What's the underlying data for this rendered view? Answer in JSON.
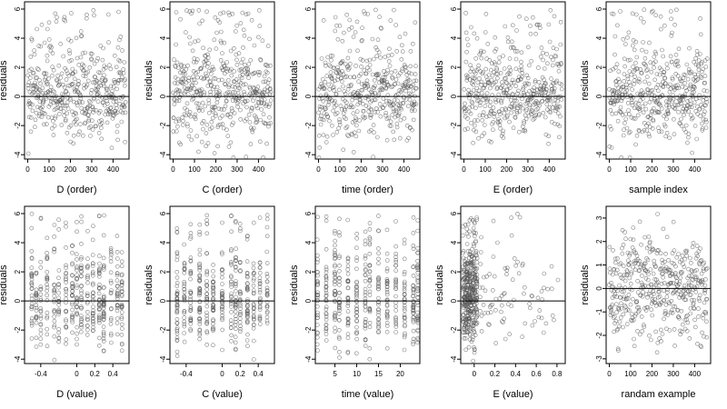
{
  "figure": {
    "panels": [
      {
        "id": "D-order",
        "xlabel": "D (order)",
        "ylabel": "residuals",
        "xticks": [
          0,
          100,
          200,
          300,
          400
        ],
        "yticks": [
          -4,
          -2,
          0,
          2,
          4,
          6
        ]
      },
      {
        "id": "C-order",
        "xlabel": "C (order)",
        "ylabel": "residuals",
        "xticks": [
          0,
          100,
          200,
          300,
          400
        ],
        "yticks": [
          -4,
          -2,
          0,
          2,
          4,
          6
        ]
      },
      {
        "id": "time-order",
        "xlabel": "time (order)",
        "ylabel": "residuals",
        "xticks": [
          0,
          100,
          200,
          300,
          400
        ],
        "yticks": [
          -4,
          -2,
          0,
          2,
          4,
          6
        ]
      },
      {
        "id": "E-order",
        "xlabel": "E (order)",
        "ylabel": "residuals",
        "xticks": [
          0,
          100,
          200,
          300,
          400
        ],
        "yticks": [
          -4,
          -2,
          0,
          2,
          4,
          6
        ]
      },
      {
        "id": "sample-index",
        "xlabel": "sample index",
        "ylabel": "residuals",
        "xticks": [
          0,
          100,
          200,
          300,
          400
        ],
        "yticks": [
          -4,
          -2,
          0,
          2,
          4,
          6
        ]
      },
      {
        "id": "D-value",
        "xlabel": "D (value)",
        "ylabel": "residuals",
        "xticks": [
          -0.4,
          0.0,
          0.2,
          0.4
        ],
        "yticks": [
          -4,
          -2,
          0,
          2,
          4,
          6
        ]
      },
      {
        "id": "C-value",
        "xlabel": "C (value)",
        "ylabel": "residuals",
        "xticks": [
          -0.4,
          0.0,
          0.2,
          0.4
        ],
        "yticks": [
          -4,
          -2,
          0,
          2,
          4,
          6
        ]
      },
      {
        "id": "time-value",
        "xlabel": "time (value)",
        "ylabel": "residuals",
        "xticks": [
          5,
          10,
          15,
          20
        ],
        "yticks": [
          -4,
          -2,
          0,
          2,
          4,
          6
        ]
      },
      {
        "id": "E-value",
        "xlabel": "E (value)",
        "ylabel": "residuals",
        "xticks": [
          0.0,
          0.2,
          0.4,
          0.6,
          0.8
        ],
        "yticks": [
          -4,
          -2,
          0,
          2,
          4,
          6
        ]
      },
      {
        "id": "random-example",
        "xlabel": "randam example",
        "ylabel": "residuals",
        "xticks": [
          0,
          100,
          200,
          300,
          400
        ],
        "yticks": [
          -3,
          -2,
          -1,
          0,
          1,
          2,
          3
        ]
      }
    ]
  },
  "chart_data": [
    {
      "type": "scatter",
      "xlabel": "D (order)",
      "ylabel": "residuals",
      "xlim": [
        -15,
        475
      ],
      "ylim": [
        -4.3,
        6.5
      ],
      "hline": 0,
      "n_points": 460,
      "x_kind": "index",
      "spread": [
        1.6,
        -1.5
      ],
      "grid": false
    },
    {
      "type": "scatter",
      "xlabel": "C (order)",
      "ylabel": "residuals",
      "xlim": [
        -15,
        475
      ],
      "ylim": [
        -4.3,
        6.5
      ],
      "hline": 0,
      "n_points": 460,
      "x_kind": "index",
      "spread": [
        1.6,
        -1.5
      ],
      "grid": false
    },
    {
      "type": "scatter",
      "xlabel": "time (order)",
      "ylabel": "residuals",
      "xlim": [
        -15,
        475
      ],
      "ylim": [
        -4.3,
        6.5
      ],
      "hline": 0,
      "n_points": 460,
      "x_kind": "index",
      "spread": [
        1.6,
        -1.5
      ],
      "grid": false
    },
    {
      "type": "scatter",
      "xlabel": "E (order)",
      "ylabel": "residuals",
      "xlim": [
        -15,
        475
      ],
      "ylim": [
        -4.3,
        6.5
      ],
      "hline": 0,
      "n_points": 460,
      "x_kind": "index",
      "spread": [
        1.6,
        -1.5
      ],
      "grid": false
    },
    {
      "type": "scatter",
      "xlabel": "sample index",
      "ylabel": "residuals",
      "xlim": [
        -15,
        475
      ],
      "ylim": [
        -4.3,
        6.5
      ],
      "hline": 0,
      "n_points": 460,
      "x_kind": "index",
      "spread": [
        1.6,
        -1.5
      ],
      "grid": false
    },
    {
      "type": "scatter",
      "xlabel": "D (value)",
      "ylabel": "residuals",
      "xlim": [
        -0.58,
        0.58
      ],
      "ylim": [
        -4.3,
        6.5
      ],
      "hline": 0,
      "n_points": 460,
      "x_kind": "columns",
      "x_levels": [
        -0.5,
        -0.45,
        -0.4,
        -0.33,
        -0.25,
        -0.2,
        -0.12,
        -0.05,
        0.0,
        0.05,
        0.12,
        0.18,
        0.25,
        0.3,
        0.38,
        0.45,
        0.5
      ],
      "spread": [
        1.6,
        -1.5
      ],
      "grid": false
    },
    {
      "type": "scatter",
      "xlabel": "C (value)",
      "ylabel": "residuals",
      "xlim": [
        -0.58,
        0.58
      ],
      "ylim": [
        -4.3,
        6.5
      ],
      "hline": 0,
      "n_points": 460,
      "x_kind": "columns",
      "x_levels": [
        -0.5,
        -0.42,
        -0.35,
        -0.25,
        -0.17,
        -0.1,
        0.0,
        0.1,
        0.15,
        0.2,
        0.28,
        0.35,
        0.42,
        0.5
      ],
      "spread": [
        1.6,
        -1.5
      ],
      "grid": false
    },
    {
      "type": "scatter",
      "xlabel": "time (value)",
      "ylabel": "residuals",
      "xlim": [
        0.5,
        24.5
      ],
      "ylim": [
        -4.3,
        6.5
      ],
      "hline": 0,
      "n_points": 460,
      "x_kind": "columns",
      "x_levels": [
        1,
        3,
        5,
        6,
        8,
        10,
        12,
        13,
        15,
        17,
        19,
        21,
        23,
        24
      ],
      "spread": [
        1.6,
        -1.5
      ],
      "grid": false
    },
    {
      "type": "scatter",
      "xlabel": "E (value)",
      "ylabel": "residuals",
      "xlim": [
        -0.13,
        0.88
      ],
      "ylim": [
        -4.3,
        6.5
      ],
      "hline": 0,
      "n_points": 460,
      "x_kind": "skewed",
      "spread": [
        1.6,
        -1.5
      ],
      "grid": false
    },
    {
      "type": "scatter",
      "xlabel": "randam example",
      "ylabel": "residuals",
      "xlim": [
        -15,
        475
      ],
      "ylim": [
        -3.2,
        3.5
      ],
      "hline": 0,
      "n_points": 460,
      "x_kind": "index",
      "spread": [
        1,
        -1
      ],
      "grid": false
    }
  ]
}
